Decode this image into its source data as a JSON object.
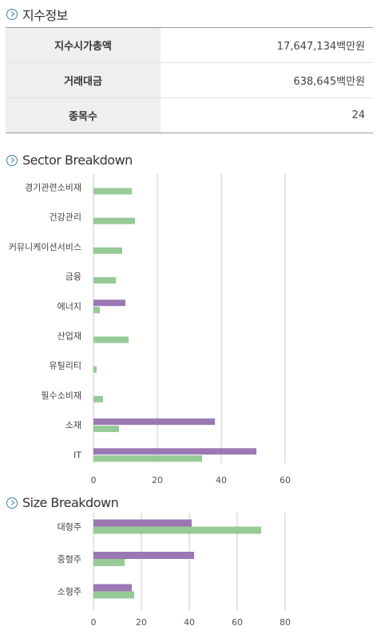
{
  "info": {
    "title": "지수정보",
    "rows": [
      {
        "label": "지수시가총액",
        "value": "17,647,134백만원"
      },
      {
        "label": "거래대금",
        "value": "638,645백만원"
      },
      {
        "label": "종목수",
        "value": "24"
      }
    ]
  },
  "sector": {
    "title": "Sector Breakdown"
  },
  "size": {
    "title": "Size Breakdown"
  },
  "colors": {
    "series1": "#9b78b4",
    "series2": "#96ca96",
    "accent": "#3a7fa8"
  },
  "chart_data": [
    {
      "type": "bar",
      "orientation": "horizontal",
      "title": "Sector Breakdown",
      "categories": [
        "경기관련소비재",
        "건강관리",
        "커뮤니케이션서비스",
        "금융",
        "에너지",
        "산업재",
        "유틸리티",
        "필수소비재",
        "소재",
        "IT"
      ],
      "series": [
        {
          "values": [
            0,
            0,
            0,
            0,
            10,
            0,
            0,
            0,
            38,
            51
          ]
        },
        {
          "values": [
            12,
            13,
            9,
            7,
            2,
            11,
            1,
            3,
            8,
            34
          ]
        }
      ],
      "xlim": [
        0,
        60
      ],
      "xticks": [
        0,
        20,
        40,
        60
      ],
      "grid": true
    },
    {
      "type": "bar",
      "orientation": "horizontal",
      "title": "Size Breakdown",
      "categories": [
        "대형주",
        "중형주",
        "소형주"
      ],
      "series": [
        {
          "values": [
            41,
            42,
            16
          ]
        },
        {
          "values": [
            70,
            13,
            17
          ]
        }
      ],
      "xlim": [
        0,
        80
      ],
      "xticks": [
        0,
        20,
        40,
        60,
        80
      ],
      "grid": true
    }
  ]
}
